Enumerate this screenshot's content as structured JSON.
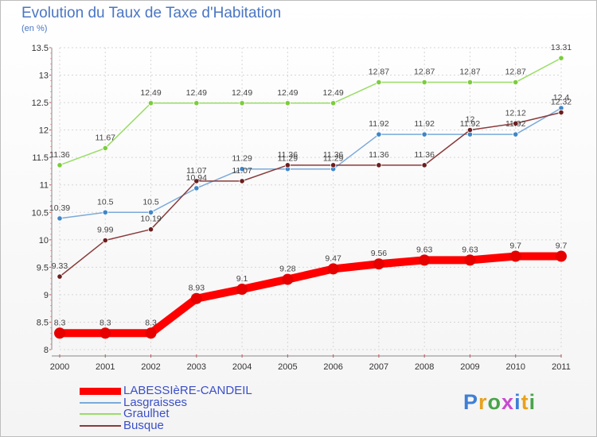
{
  "header": {
    "title": "Evolution du Taux de Taxe d'Habitation",
    "subtitle": "(en %)"
  },
  "logo": {
    "text": "Proxiti",
    "letter_colors": [
      "#3f7fd6",
      "#e8a21c",
      "#4aa34a",
      "#c84ad0",
      "#3f7fd6",
      "#e8a21c",
      "#4aa34a"
    ]
  },
  "chart_data": {
    "type": "line",
    "title": "Evolution du Taux de Taxe d'Habitation",
    "ylabel": "(en %)",
    "x": [
      "2000",
      "2001",
      "2002",
      "2003",
      "2004",
      "2005",
      "2006",
      "2007",
      "2008",
      "2009",
      "2010",
      "2011"
    ],
    "ylim": [
      8,
      13.5
    ],
    "yticks": [
      8,
      8.5,
      9,
      9.5,
      10,
      10.5,
      11,
      11.5,
      12,
      12.5,
      13,
      13.5
    ],
    "grid": true,
    "legend_position": "bottom-left",
    "series": [
      {
        "name": "LABESSIèRE-CANDEIL",
        "color": "#ff0000",
        "marker": "#e60000",
        "values": [
          8.3,
          8.3,
          8.3,
          8.93,
          9.1,
          9.28,
          9.47,
          9.56,
          9.63,
          9.63,
          9.7,
          9.7
        ]
      },
      {
        "name": "Lasgraisses",
        "color": "#7aaadb",
        "marker": "#3f86c8",
        "values": [
          10.39,
          10.5,
          10.5,
          10.94,
          11.29,
          11.29,
          11.29,
          11.92,
          11.92,
          11.92,
          11.92,
          12.4
        ]
      },
      {
        "name": "Graulhet",
        "color": "#99dd66",
        "marker": "#7ccc3c",
        "values": [
          11.36,
          11.67,
          12.49,
          12.49,
          12.49,
          12.49,
          12.49,
          12.87,
          12.87,
          12.87,
          12.87,
          13.31
        ]
      },
      {
        "name": "Busque",
        "color": "#8a3b3b",
        "marker": "#6b1e1e",
        "values": [
          9.33,
          9.99,
          10.19,
          11.07,
          11.07,
          11.36,
          11.36,
          11.36,
          11.36,
          12.0,
          12.12,
          12.32
        ]
      }
    ],
    "data_labels": [
      [
        "8.3",
        "8.3",
        "8.3",
        "8.93",
        "9.1",
        "9.28",
        "9.47",
        "9.56",
        "9.63",
        "9.63",
        "9.7",
        "9.7"
      ],
      [
        "10.39",
        "10.5",
        "10.5",
        "10.94",
        "11.29",
        "11.29",
        "11.29",
        "11.92",
        "11.92",
        "11.92",
        "11.92",
        "12.4"
      ],
      [
        "11.36",
        "11.67",
        "12.49",
        "12.49",
        "12.49",
        "12.49",
        "12.49",
        "12.87",
        "12.87",
        "12.87",
        "12.87",
        "13.31"
      ],
      [
        "9.33",
        "9.99",
        "10.19",
        "11.07",
        "11.07",
        "11.36",
        "11.36",
        "11.36",
        "11.36",
        "12",
        "12.12",
        "12.32"
      ]
    ]
  }
}
